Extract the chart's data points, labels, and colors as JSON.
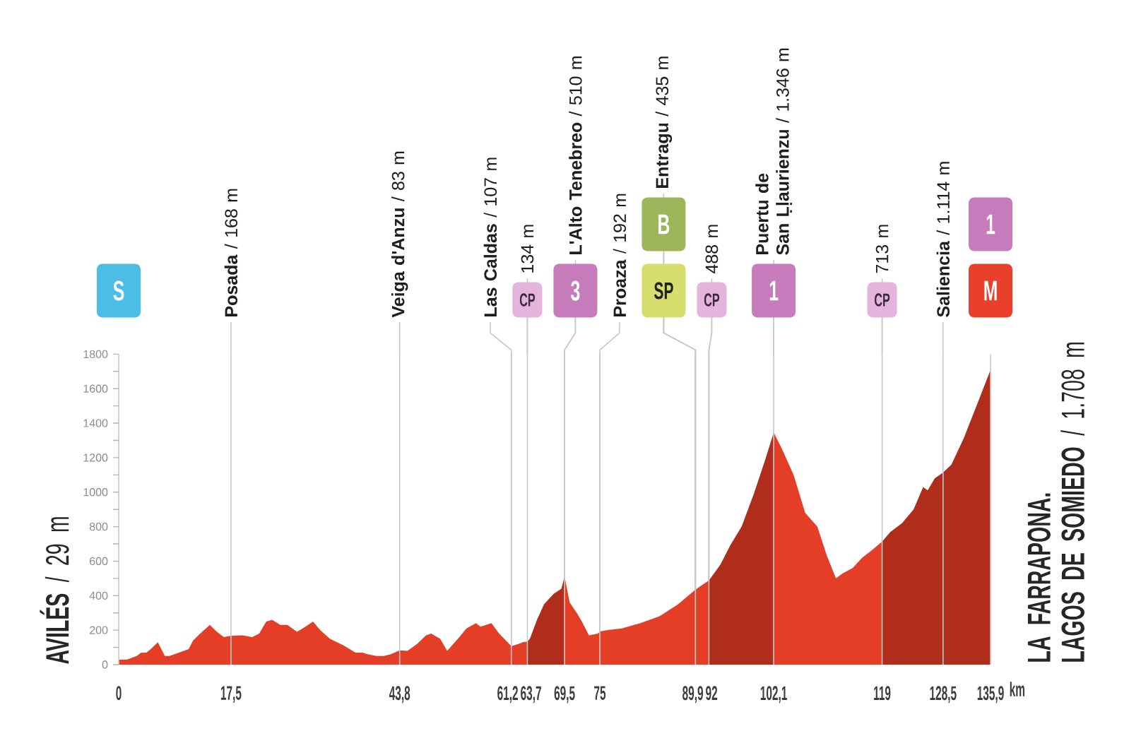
{
  "chart_data": {
    "type": "area",
    "xlabel": "km",
    "grid": "x",
    "series": [
      {
        "color": "#e53e26",
        "x": [
          0,
          1.3,
          2.8,
          3.5,
          4.3,
          5.0,
          6.1,
          7.2,
          7.9,
          9.4,
          10.9,
          11.6,
          12.7,
          14.2,
          15.3,
          16.4,
          17.5,
          19.3,
          20.8,
          21.9,
          23.0,
          23.9,
          25.2,
          26.3,
          27.8,
          29.1,
          30.3,
          31.4,
          32.9,
          35.1,
          36.9,
          38.0,
          38.8,
          40.2,
          41.3,
          42.4,
          43.8,
          45.0,
          46.5,
          47.9,
          48.7,
          50.1,
          51.2,
          53.1,
          54.2,
          55.7,
          56.4,
          58.1,
          59.3,
          61.2,
          62.3,
          63.0,
          63.7
        ],
        "values": [
          29,
          30,
          50,
          70,
          70,
          90,
          130,
          50,
          50,
          70,
          90,
          140,
          180,
          230,
          190,
          160,
          168,
          170,
          160,
          180,
          250,
          260,
          230,
          230,
          190,
          220,
          250,
          200,
          150,
          110,
          70,
          70,
          60,
          50,
          50,
          60,
          83,
          80,
          120,
          170,
          180,
          150,
          80,
          160,
          210,
          240,
          220,
          240,
          180,
          107,
          120,
          130,
          134
        ]
      },
      {
        "color": "#b02d1c",
        "x": [
          63.7,
          64.1,
          65.2,
          66.3,
          67.8,
          69.0,
          69.5
        ],
        "values": [
          134,
          150,
          260,
          350,
          410,
          440,
          510
        ]
      },
      {
        "color": "#e53e26",
        "x": [
          69.5,
          70.3,
          71.4,
          72.2,
          73.3,
          74.7,
          75,
          76.2,
          78.4,
          81.3,
          84.3,
          87.2,
          89.9,
          92
        ],
        "values": [
          510,
          360,
          300,
          250,
          170,
          180,
          192,
          200,
          210,
          240,
          280,
          350,
          435,
          488
        ]
      },
      {
        "color": "#b02d1c",
        "x": [
          92,
          93.8,
          95.3,
          97.1,
          99.0,
          100.8,
          102.1
        ],
        "values": [
          488,
          580,
          690,
          800,
          990,
          1190,
          1346
        ]
      },
      {
        "color": "#e53e26",
        "x": [
          102.1,
          103.4,
          105.2,
          107.0,
          108.9,
          110.4,
          111.8,
          112.9,
          114.4,
          115.9,
          117.3,
          119
        ],
        "values": [
          1346,
          1250,
          1100,
          880,
          800,
          630,
          500,
          530,
          560,
          620,
          660,
          713
        ]
      },
      {
        "color": "#b02d1c",
        "x": [
          119,
          120.3,
          122.1,
          123.9,
          125.4,
          126.1,
          127.2,
          128.5,
          129.8,
          131.7,
          133.5,
          135.9
        ],
        "values": [
          713,
          770,
          820,
          900,
          1030,
          1010,
          1080,
          1114,
          1160,
          1310,
          1480,
          1708
        ]
      }
    ],
    "xlim": [
      0,
      135.9
    ],
    "xticks": [
      0,
      {
        "value": 17.5,
        "label": "17,5"
      },
      {
        "value": 43.8,
        "label": "43,8"
      },
      {
        "value": 61.2,
        "label": "61,2"
      },
      {
        "value": 63.7,
        "label": "63,7"
      },
      {
        "value": 69.5,
        "label": "69,5"
      },
      75,
      {
        "value": 89.9,
        "label": "89,9"
      },
      92,
      {
        "value": 102.1,
        "label": "102,1"
      },
      119,
      {
        "value": 128.5,
        "label": "128,5"
      },
      {
        "value": 135.9,
        "label": "135,9"
      }
    ],
    "ylim": [
      0,
      1800
    ],
    "yticks": [
      0,
      {
        "value": 100,
        "label": null
      },
      200,
      {
        "value": 300,
        "label": null
      },
      400,
      {
        "value": 500,
        "label": null
      },
      600,
      {
        "value": 700,
        "label": null
      },
      800,
      {
        "value": 900,
        "label": null
      },
      1000,
      {
        "value": 1100,
        "label": null
      },
      1200,
      {
        "value": 1300,
        "label": null
      },
      1400,
      {
        "value": 1500,
        "label": null
      },
      1600,
      {
        "value": 1700,
        "label": null
      },
      1800
    ],
    "annotations": [
      "**AVILÉS** / 29 m",
      "**LA FARRAPONA.**\n**LAGOS DE SOMIEDO** / 1.708 m",
      "**Posada** / 168 m",
      "**Veiga d'Anzu** / 83 m",
      {
        "text": "**Las Caldas** / 107 m",
        "x": 61.2,
        "y": 107
      },
      "134 m",
      {
        "text": "**L'Alto Tenebreo** / 510 m",
        "x": 69.5,
        "y": 510
      },
      {
        "text": "**Proaza** / 192 m",
        "x": 75,
        "y": 192
      },
      {
        "text": "**Entragu** / 435 m",
        "x": 89.9,
        "y": 435
      },
      {
        "text": "488 m",
        "x": 92,
        "y": 488
      },
      "**Puertu de**\n**San Ḷḷaurienzu** / 1.346 m",
      "713 m",
      "**Saliencia** / 1.114 m",
      "S",
      "CP",
      {
        "text": "3",
        "x": 69.5,
        "y": 510
      },
      {
        "text": "SP",
        "x": 89.9,
        "y": 435
      },
      {
        "text": "B",
        "x": 89.9,
        "y": 435
      },
      {
        "text": "CP",
        "x": 92,
        "y": 488
      },
      "1",
      "CP",
      "M",
      "1"
    ]
  }
}
